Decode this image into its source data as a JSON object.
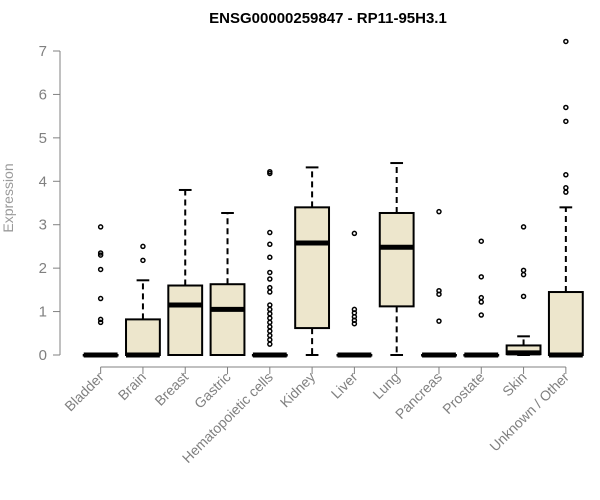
{
  "chart_data": {
    "type": "boxplot",
    "title": "ENSG00000259847 - RP11-95H3.1",
    "ylabel": "Expression",
    "xlabel": "",
    "ylim": [
      0,
      7
    ],
    "yticks": [
      0,
      1,
      2,
      3,
      4,
      5,
      6,
      7
    ],
    "box_color": "#ede6cc",
    "categories": [
      "Bladder",
      "Brain",
      "Breast",
      "Gastric",
      "Hematopoietic cells",
      "Kidney",
      "Liver",
      "Lung",
      "Pancreas",
      "Prostate",
      "Skin",
      "Unknown / Other"
    ],
    "boxes": [
      {
        "category": "Bladder",
        "min": 0,
        "q1": 0,
        "median": 0,
        "q3": 0,
        "max": 0,
        "outliers": [
          2.95,
          2.35,
          2.3,
          1.97,
          1.3,
          0.82,
          0.75
        ]
      },
      {
        "category": "Brain",
        "min": 0,
        "q1": 0,
        "median": 0,
        "q3": 0.82,
        "max": 1.72,
        "outliers": [
          2.5,
          2.18
        ]
      },
      {
        "category": "Breast",
        "min": 0,
        "q1": 0,
        "median": 1.15,
        "q3": 1.6,
        "max": 3.8,
        "outliers": []
      },
      {
        "category": "Gastric",
        "min": 0,
        "q1": 0,
        "median": 1.05,
        "q3": 1.63,
        "max": 3.27,
        "outliers": []
      },
      {
        "category": "Hematopoietic cells",
        "min": 0,
        "q1": 0,
        "median": 0,
        "q3": 0,
        "max": 0,
        "outliers": [
          4.22,
          4.18,
          2.82,
          2.55,
          2.25,
          1.9,
          1.75,
          1.55,
          1.45,
          1.15,
          1.05,
          0.95,
          0.85,
          0.75,
          0.65,
          0.55,
          0.45,
          0.35,
          0.25
        ]
      },
      {
        "category": "Kidney",
        "min": 0,
        "q1": 0.62,
        "median": 2.58,
        "q3": 3.4,
        "max": 4.32,
        "outliers": []
      },
      {
        "category": "Liver",
        "min": 0,
        "q1": 0,
        "median": 0,
        "q3": 0,
        "max": 0,
        "outliers": [
          2.8,
          1.05,
          0.97,
          0.88,
          0.8,
          0.72
        ]
      },
      {
        "category": "Lung",
        "min": 0,
        "q1": 1.12,
        "median": 2.48,
        "q3": 3.27,
        "max": 4.42,
        "outliers": []
      },
      {
        "category": "Pancreas",
        "min": 0,
        "q1": 0,
        "median": 0,
        "q3": 0,
        "max": 0,
        "outliers": [
          3.3,
          1.48,
          1.4,
          0.78
        ]
      },
      {
        "category": "Prostate",
        "min": 0,
        "q1": 0,
        "median": 0,
        "q3": 0,
        "max": 0,
        "outliers": [
          2.62,
          1.8,
          1.32,
          1.22,
          0.92
        ]
      },
      {
        "category": "Skin",
        "min": 0,
        "q1": 0.02,
        "median": 0.05,
        "q3": 0.22,
        "max": 0.43,
        "outliers": [
          2.95,
          1.95,
          1.85,
          1.35
        ]
      },
      {
        "category": "Unknown / Other",
        "min": 0,
        "q1": 0,
        "median": 0,
        "q3": 1.45,
        "max": 3.4,
        "outliers": [
          7.22,
          5.7,
          5.38,
          4.15,
          3.85,
          3.75
        ]
      }
    ]
  }
}
